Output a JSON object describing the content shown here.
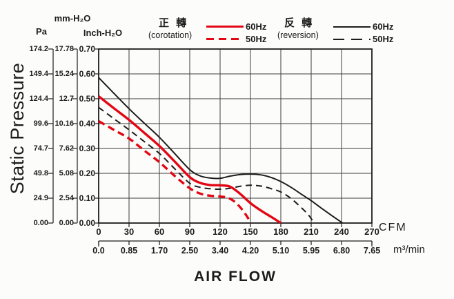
{
  "colors": {
    "red": "#e30613",
    "black": "#1c1c1c",
    "grid": "#3d3d3d",
    "frame": "#1c1c1c",
    "background": "#fcfcfa"
  },
  "y_axis": {
    "title": "Static Pressure",
    "unit_pa": "Pa",
    "unit_mm": "mm-H₂O",
    "unit_inch": "Inch-H₂O",
    "pa_ticks": [
      "174.2",
      "149.4",
      "124.4",
      "99.6",
      "74.7",
      "49.8",
      "24.9",
      "0.00"
    ],
    "mm_ticks": [
      "17.78",
      "15.24",
      "12.7",
      "10.16",
      "7.62",
      "5.08",
      "2.54",
      "0.00"
    ],
    "inch_ticks": [
      "0.70",
      "0.60",
      "0.50",
      "0.40",
      "0.30",
      "0.20",
      "0.10",
      "0.00"
    ]
  },
  "x_axis": {
    "title": "AIR FLOW",
    "cfm_ticks": [
      "0",
      "30",
      "60",
      "90",
      "120",
      "150",
      "180",
      "210",
      "240",
      "270"
    ],
    "cfm_unit": "CFM",
    "m3_ticks": [
      "0.0",
      "0.85",
      "1.70",
      "2.50",
      "3.40",
      "4.20",
      "5.10",
      "5.95",
      "6.80",
      "7.65"
    ],
    "m3_unit": "m³/min"
  },
  "legend": {
    "corotation": {
      "title": "正 轉",
      "subtitle": "(corotation)",
      "hz60": "60Hz",
      "hz50": "50Hz"
    },
    "reversion": {
      "title": "反 轉",
      "subtitle": "(reversion)",
      "hz60": "60Hz",
      "hz50": "50Hz"
    }
  },
  "chart_data": {
    "type": "line",
    "title": "Fan static pressure vs air flow",
    "xlabel": "AIR FLOW",
    "ylabel": "Static Pressure",
    "x_units": [
      "CFM",
      "m³/min"
    ],
    "y_units": [
      "Pa",
      "mm-H₂O",
      "Inch-H₂O"
    ],
    "x_range_cfm": [
      0,
      270
    ],
    "y_range_inch_h2o": [
      0,
      0.7
    ],
    "grid": true,
    "x_grid_step_cfm": 30,
    "y_grid_step_inch": 0.1,
    "x_ticks_cfm": [
      0,
      30,
      60,
      90,
      120,
      150,
      180,
      210,
      240,
      270
    ],
    "x_ticks_m3min": [
      0.0,
      0.85,
      1.7,
      2.5,
      3.4,
      4.2,
      5.1,
      5.95,
      6.8,
      7.65
    ],
    "y_ticks_inch_h2o": [
      0.7,
      0.6,
      0.5,
      0.4,
      0.3,
      0.2,
      0.1,
      0.0
    ],
    "y_ticks_mm_h2o": [
      17.78,
      15.24,
      12.7,
      10.16,
      7.62,
      5.08,
      2.54,
      0.0
    ],
    "y_ticks_pa": [
      174.2,
      149.4,
      124.4,
      99.6,
      74.7,
      49.8,
      24.9,
      0.0
    ],
    "legend_position": "top",
    "series": [
      {
        "name": "reversion-60hz",
        "legend": "反轉 (reversion) 60Hz",
        "color": "#1c1c1c",
        "dash": "solid",
        "width": 2,
        "points_cfm_inch": [
          [
            0,
            0.585
          ],
          [
            15,
            0.522
          ],
          [
            30,
            0.46
          ],
          [
            45,
            0.402
          ],
          [
            60,
            0.345
          ],
          [
            75,
            0.28
          ],
          [
            90,
            0.215
          ],
          [
            100,
            0.19
          ],
          [
            110,
            0.181
          ],
          [
            120,
            0.18
          ],
          [
            130,
            0.189
          ],
          [
            140,
            0.195
          ],
          [
            150,
            0.197
          ],
          [
            160,
            0.194
          ],
          [
            170,
            0.184
          ],
          [
            180,
            0.167
          ],
          [
            190,
            0.144
          ],
          [
            200,
            0.117
          ],
          [
            210,
            0.09
          ],
          [
            220,
            0.06
          ],
          [
            230,
            0.031
          ],
          [
            241,
            0
          ]
        ]
      },
      {
        "name": "reversion-50hz",
        "legend": "反轉 (reversion) 50Hz",
        "color": "#1c1c1c",
        "dash": "dashed",
        "width": 2,
        "points_cfm_inch": [
          [
            0,
            0.465
          ],
          [
            15,
            0.42
          ],
          [
            30,
            0.375
          ],
          [
            45,
            0.328
          ],
          [
            60,
            0.28
          ],
          [
            75,
            0.219
          ],
          [
            90,
            0.16
          ],
          [
            100,
            0.144
          ],
          [
            110,
            0.138
          ],
          [
            120,
            0.136
          ],
          [
            130,
            0.14
          ],
          [
            140,
            0.148
          ],
          [
            150,
            0.152
          ],
          [
            160,
            0.149
          ],
          [
            170,
            0.139
          ],
          [
            180,
            0.125
          ],
          [
            190,
            0.099
          ],
          [
            200,
            0.063
          ],
          [
            207,
            0.034
          ],
          [
            213,
            0
          ]
        ]
      },
      {
        "name": "corotation-60hz",
        "legend": "正轉 (corotation) 60Hz",
        "color": "#e30613",
        "dash": "solid",
        "width": 3.4,
        "points_cfm_inch": [
          [
            0,
            0.51
          ],
          [
            15,
            0.462
          ],
          [
            30,
            0.415
          ],
          [
            45,
            0.363
          ],
          [
            60,
            0.31
          ],
          [
            75,
            0.248
          ],
          [
            90,
            0.185
          ],
          [
            100,
            0.162
          ],
          [
            110,
            0.153
          ],
          [
            120,
            0.152
          ],
          [
            130,
            0.146
          ],
          [
            140,
            0.117
          ],
          [
            150,
            0.08
          ],
          [
            160,
            0.051
          ],
          [
            170,
            0.026
          ],
          [
            180,
            0
          ]
        ]
      },
      {
        "name": "corotation-50hz",
        "legend": "正轉 (corotation) 50Hz",
        "color": "#e30613",
        "dash": "dashed",
        "width": 3.4,
        "points_cfm_inch": [
          [
            0,
            0.41
          ],
          [
            15,
            0.375
          ],
          [
            30,
            0.34
          ],
          [
            45,
            0.292
          ],
          [
            60,
            0.245
          ],
          [
            75,
            0.19
          ],
          [
            90,
            0.14
          ],
          [
            100,
            0.119
          ],
          [
            110,
            0.11
          ],
          [
            120,
            0.107
          ],
          [
            128,
            0.101
          ],
          [
            135,
            0.084
          ],
          [
            142,
            0.053
          ],
          [
            147,
            0.024
          ],
          [
            150,
            0
          ]
        ]
      }
    ]
  }
}
